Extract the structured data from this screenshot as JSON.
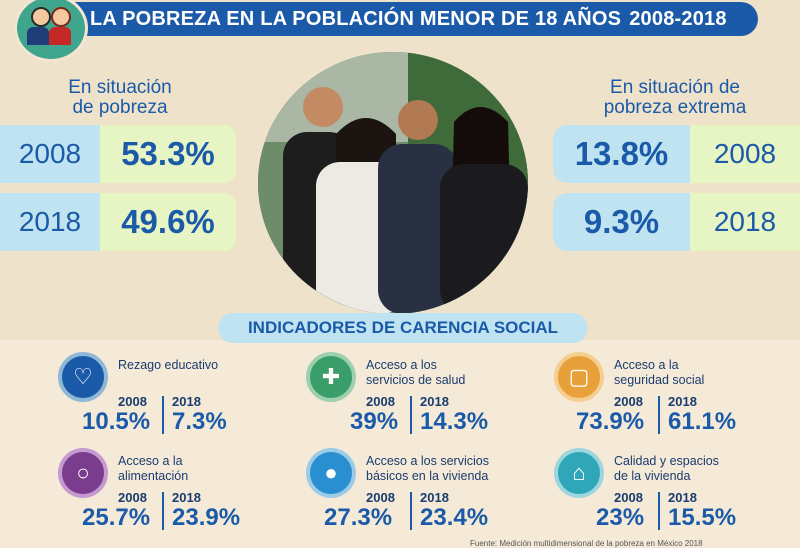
{
  "header": {
    "title": "LA POBREZA EN LA POBLACIÓN MENOR DE 18 AÑOS",
    "years": "2008-2018"
  },
  "pobreza": {
    "title_line1": "En situación",
    "title_line2": "de pobreza",
    "rows": [
      {
        "year": "2008",
        "value": "53.3%"
      },
      {
        "year": "2018",
        "value": "49.6%"
      }
    ]
  },
  "pobreza_extrema": {
    "title_line1": "En situación de",
    "title_line2": "pobreza extrema",
    "rows": [
      {
        "year": "2008",
        "value": "13.8%"
      },
      {
        "year": "2018",
        "value": "9.3%"
      }
    ]
  },
  "indicadores": {
    "title": "INDICADORES DE CARENCIA SOCIAL",
    "items": [
      {
        "label": "Rezago educativo",
        "label2": "",
        "y1": "2008",
        "v1": "10.5%",
        "y2": "2018",
        "v2": "7.3%",
        "icon": "education-icon",
        "color": "#1a5aa8"
      },
      {
        "label": "Acceso a los",
        "label2": "servicios de salud",
        "y1": "2008",
        "v1": "39%",
        "y2": "2018",
        "v2": "14.3%",
        "icon": "health-icon",
        "color": "#3a9e6a"
      },
      {
        "label": "Acceso a la",
        "label2": "seguridad social",
        "y1": "2008",
        "v1": "73.9%",
        "y2": "2018",
        "v2": "61.1%",
        "icon": "social-security-icon",
        "color": "#e8a13a"
      },
      {
        "label": "Acceso a la",
        "label2": "alimentación",
        "y1": "2008",
        "v1": "25.7%",
        "y2": "2018",
        "v2": "23.9%",
        "icon": "food-icon",
        "color": "#7a3c8c"
      },
      {
        "label": "Acceso a los servicios",
        "label2": "básicos en la vivienda",
        "y1": "2008",
        "v1": "27.3%",
        "y2": "2018",
        "v2": "23.4%",
        "icon": "water-icon",
        "color": "#2a8fd0"
      },
      {
        "label": "Calidad y espacios",
        "label2": "de la vivienda",
        "y1": "2008",
        "v1": "23%",
        "y2": "2018",
        "v2": "15.5%",
        "icon": "housing-icon",
        "color": "#2fa7b8"
      }
    ]
  },
  "source": "Fuente: Medición multidimensional de la pobreza en México 2018"
}
